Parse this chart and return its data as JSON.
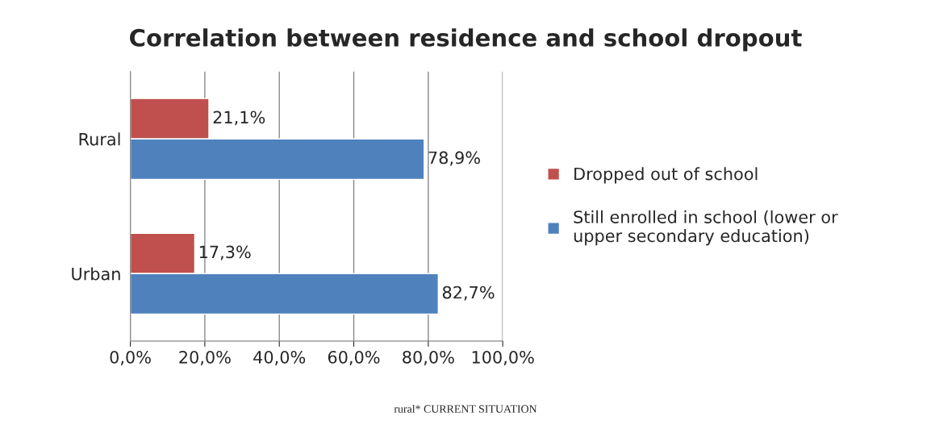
{
  "chart_data": {
    "type": "bar",
    "orientation": "horizontal",
    "title": "Correlation between residence and school dropout",
    "categories": [
      "Rural",
      "Urban"
    ],
    "series": [
      {
        "name": "Dropped out of school",
        "color": "#c0504d",
        "values": [
          21.1,
          17.3
        ],
        "value_labels": [
          "21,1%",
          "17,3%"
        ]
      },
      {
        "name": "Still enrolled in school (lower or upper secondary education)",
        "color": "#4f81bd",
        "values": [
          78.9,
          82.7
        ],
        "value_labels": [
          "78,9%",
          "82,7%"
        ]
      }
    ],
    "xlim": [
      0,
      100
    ],
    "xticks": [
      {
        "value": 0,
        "label": "0,0%"
      },
      {
        "value": 20,
        "label": "20,0%"
      },
      {
        "value": 40,
        "label": "40,0%"
      },
      {
        "value": 60,
        "label": "60,0%"
      },
      {
        "value": 80,
        "label": "80,0%"
      },
      {
        "value": 100,
        "label": "100,0%"
      }
    ],
    "grid": "x",
    "legend": "right",
    "annotations": [
      "rural* CURRENT SITUATION"
    ]
  }
}
